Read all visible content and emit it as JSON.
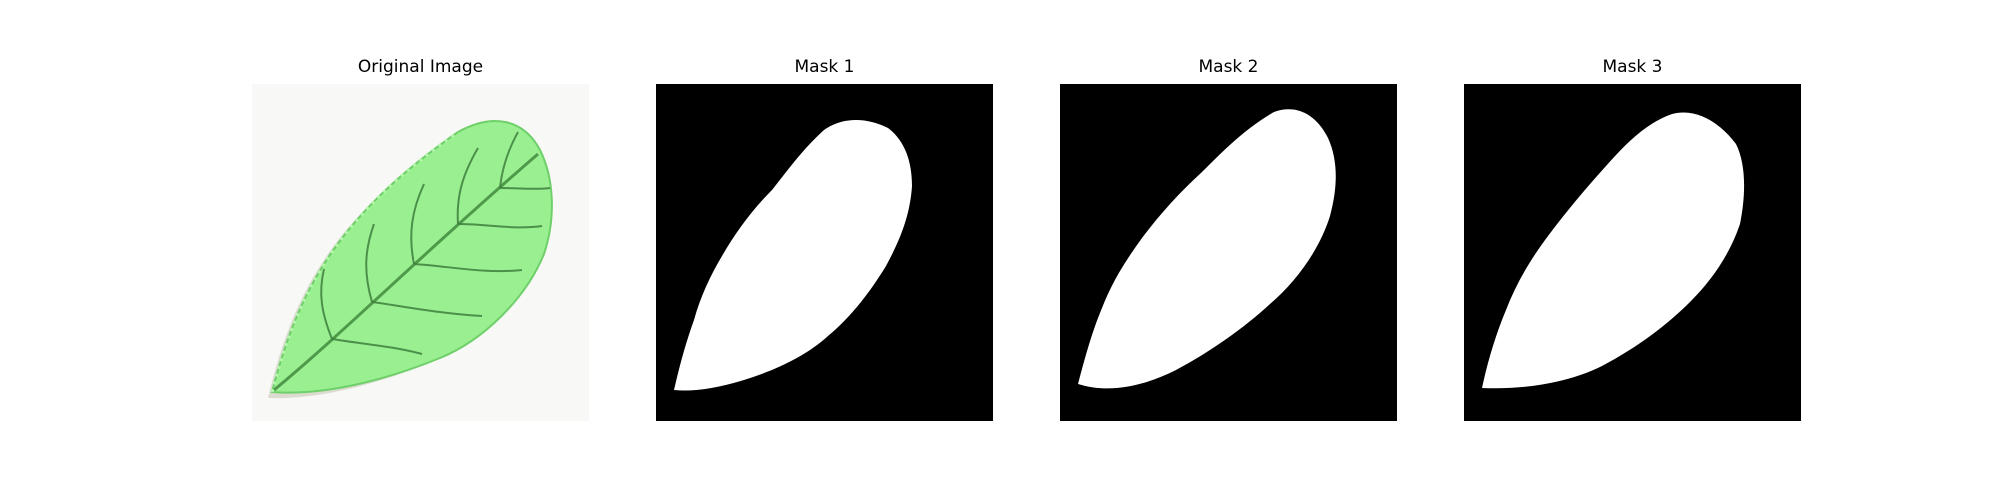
{
  "figure": {
    "panels": [
      {
        "title": "Original Image"
      },
      {
        "title": "Mask 1"
      },
      {
        "title": "Mask 2"
      },
      {
        "title": "Mask 3"
      }
    ]
  },
  "colors": {
    "mask_background": "#000000",
    "mask_foreground": "#ffffff",
    "leaf_green": "#8fe88a",
    "leaf_vein": "#3a7a3a",
    "photo_background": "#f8f8f6"
  }
}
